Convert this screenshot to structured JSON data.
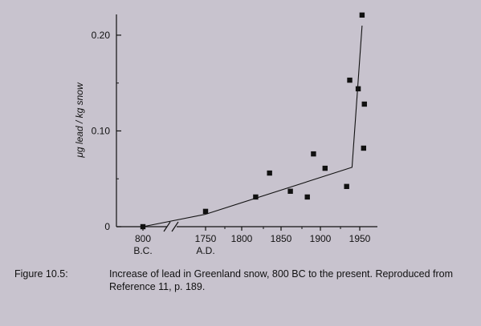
{
  "chart_data": {
    "type": "scatter",
    "ylabel": "μg lead / kg snow",
    "xlabel": "",
    "ylim": [
      0,
      0.22
    ],
    "yticks": [
      "0",
      "0.10",
      "0.20"
    ],
    "ytick_values": [
      0,
      0.1,
      0.2
    ],
    "xticks": [
      "800",
      "1750",
      "1800",
      "1850",
      "1900",
      "1950"
    ],
    "era_labels": [
      "B.C.",
      "A.D."
    ],
    "axis_break": true,
    "points": [
      {
        "x": "800 B.C.",
        "y": 0.0
      },
      {
        "x": 1750,
        "y": 0.016
      },
      {
        "x": 1815,
        "y": 0.031
      },
      {
        "x": 1833,
        "y": 0.056
      },
      {
        "x": 1860,
        "y": 0.037
      },
      {
        "x": 1882,
        "y": 0.031
      },
      {
        "x": 1890,
        "y": 0.076
      },
      {
        "x": 1905,
        "y": 0.061
      },
      {
        "x": 1933,
        "y": 0.042
      },
      {
        "x": 1937,
        "y": 0.153
      },
      {
        "x": 1948,
        "y": 0.144
      },
      {
        "x": 1953,
        "y": 0.221
      },
      {
        "x": 1956,
        "y": 0.128
      },
      {
        "x": 1955,
        "y": 0.082
      }
    ],
    "trend": [
      {
        "x": "800 B.C.",
        "y": 0.0
      },
      {
        "x": 1750,
        "y": 0.013
      },
      {
        "x": 1940,
        "y": 0.062
      },
      {
        "x": 1953,
        "y": 0.21
      }
    ]
  },
  "caption": {
    "label": "Figure 10.5:",
    "text": "Increase of lead in Greenland snow, 800 BC to the present. Reproduced from Reference 11, p. 189."
  }
}
